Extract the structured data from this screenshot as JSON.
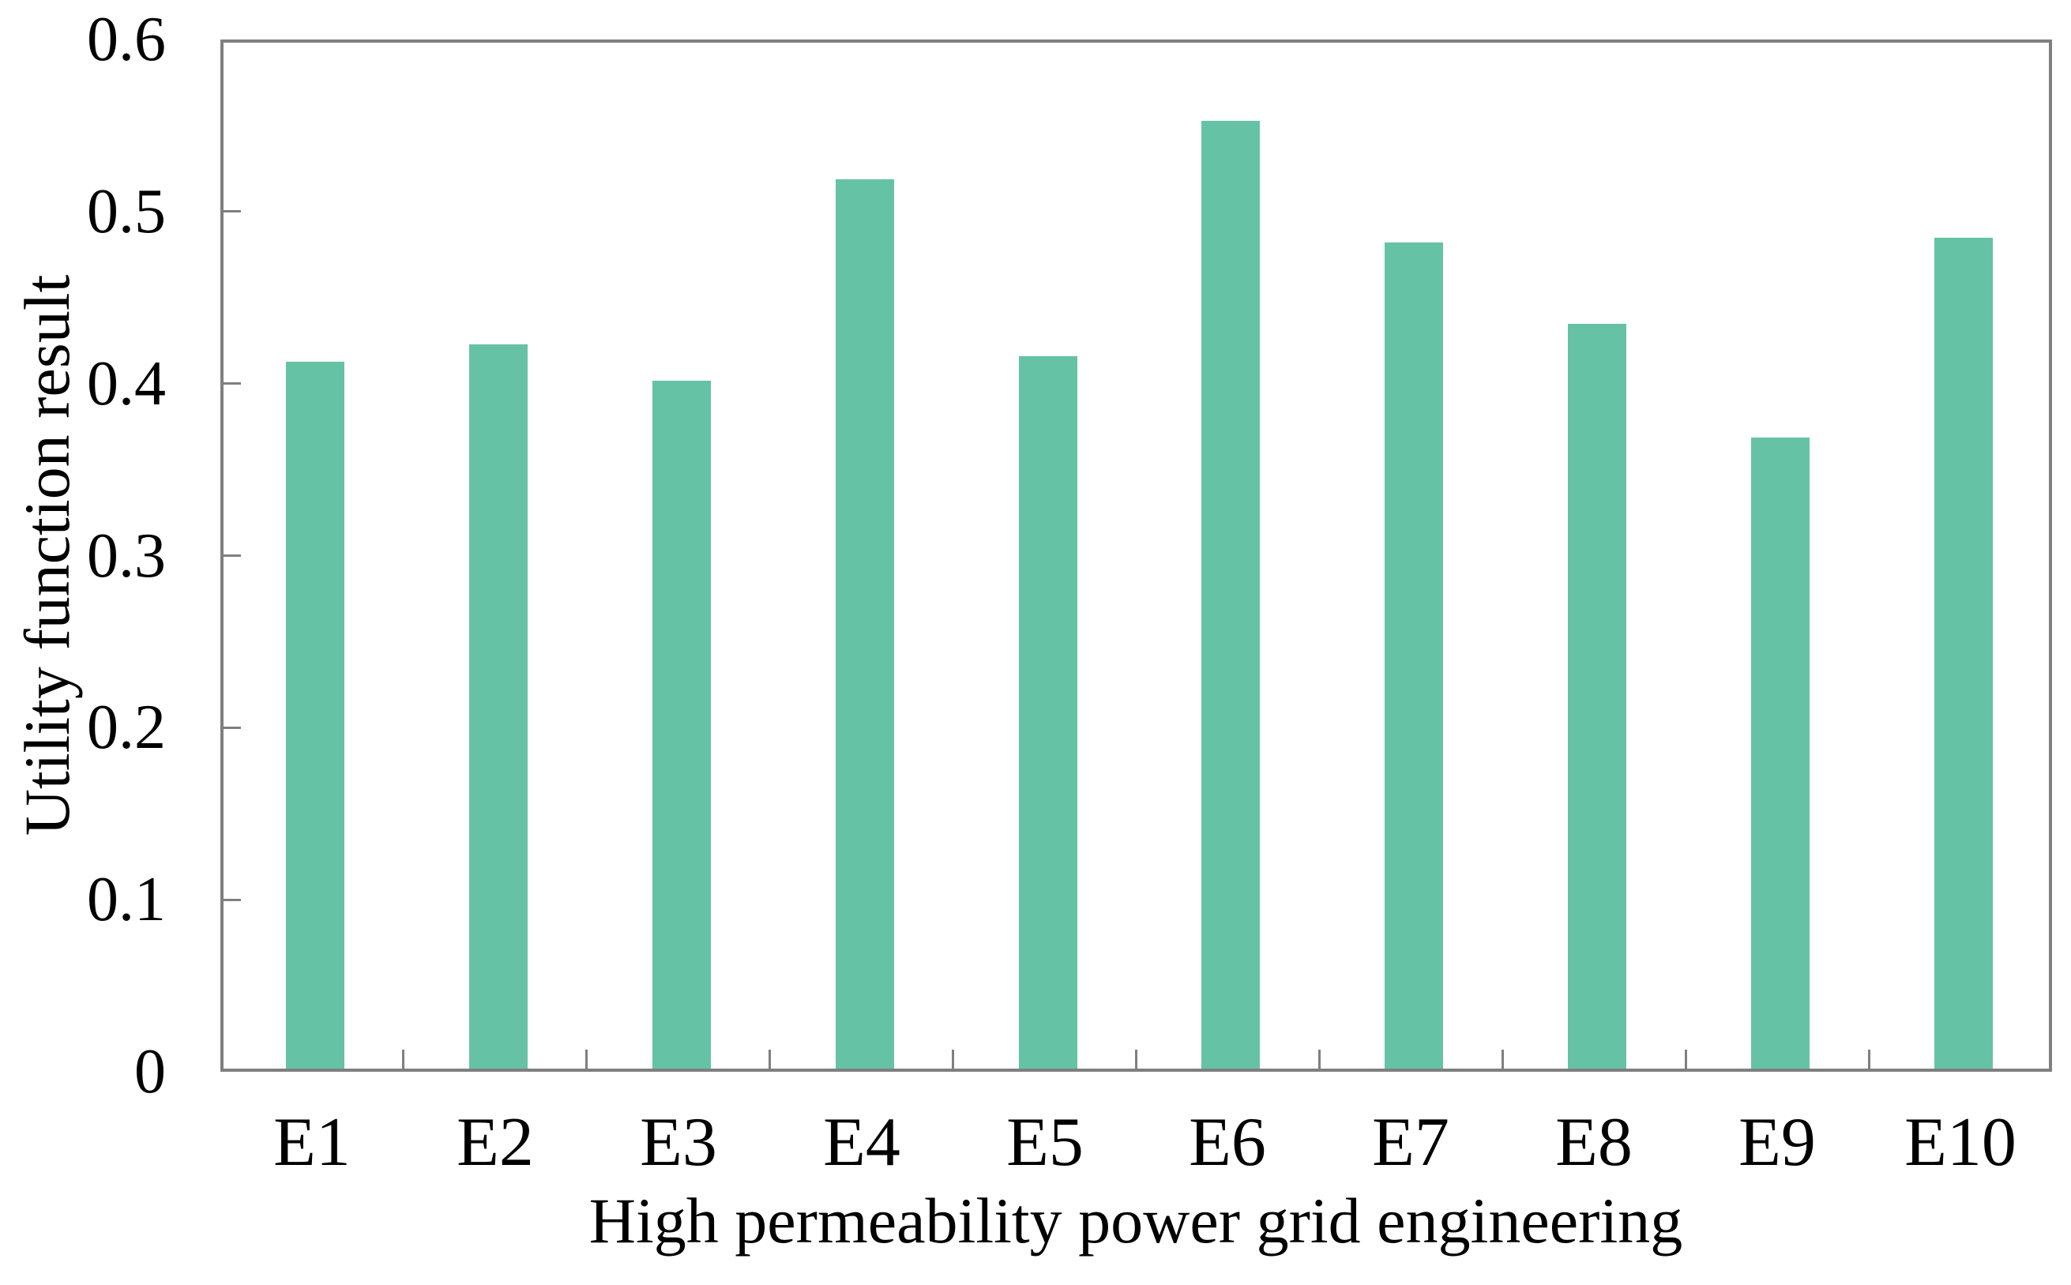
{
  "chart_data": {
    "type": "bar",
    "title": "",
    "categories": [
      "E1",
      "E2",
      "E3",
      "E4",
      "E5",
      "E6",
      "E7",
      "E8",
      "E9",
      "E10"
    ],
    "values": [
      0.411,
      0.421,
      0.4,
      0.517,
      0.414,
      0.551,
      0.48,
      0.433,
      0.367,
      0.483
    ],
    "xlabel": "High permeability power grid engineering",
    "ylabel": "Utility function result",
    "ylim": [
      0,
      0.6
    ],
    "yticks": [
      0,
      0.1,
      0.2,
      0.3,
      0.4,
      0.5,
      0.6
    ],
    "ytick_labels": [
      "0",
      "0.1",
      "0.2",
      "0.3",
      "0.4",
      "0.5",
      "0.6"
    ],
    "bar_color": "#66C2A5",
    "axis_color": "#7F7F7F",
    "text_color": "#000000",
    "grid": false,
    "legend": "none",
    "tick_direction": "in",
    "bar_width_fraction": 0.32
  }
}
